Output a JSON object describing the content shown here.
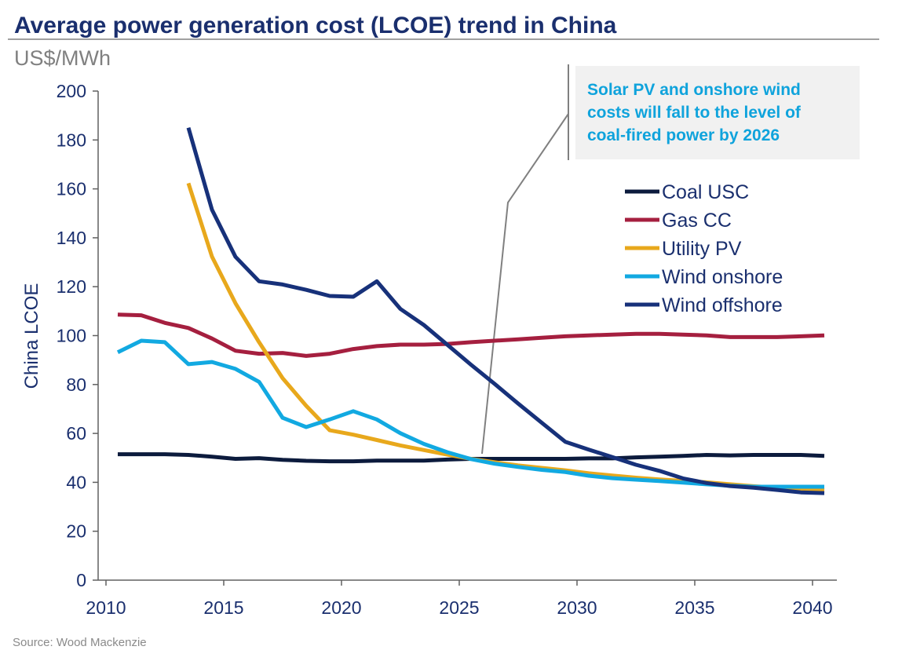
{
  "chart_data": {
    "type": "line",
    "title": "Average power generation cost (LCOE) trend in China",
    "subtitle": "US$/MWh",
    "ylabel": "China LCOE",
    "xlabel": "",
    "xlim": [
      2010,
      2041
    ],
    "ylim": [
      0,
      200
    ],
    "x_ticks": [
      2010,
      2015,
      2020,
      2025,
      2030,
      2035,
      2040
    ],
    "y_ticks": [
      0,
      20,
      40,
      60,
      80,
      100,
      120,
      140,
      160,
      180,
      200
    ],
    "grid": false,
    "legend_position": "right",
    "series": [
      {
        "name": "Coal USC",
        "color": "#0c1b3d",
        "x": [
          2010.5,
          2011.5,
          2012.5,
          2013.5,
          2014.5,
          2015.5,
          2016.5,
          2017.5,
          2018.5,
          2019.5,
          2020.5,
          2021.5,
          2022.5,
          2023.5,
          2024.5,
          2025.5,
          2026.5,
          2027.5,
          2028.5,
          2029.5,
          2030.5,
          2031.5,
          2032.5,
          2033.5,
          2034.5,
          2035.5,
          2036.5,
          2037.5,
          2038.5,
          2039.5,
          2040.5
        ],
        "y": [
          51.5,
          51.5,
          51.5,
          51.2,
          50.5,
          49.6,
          49.9,
          49.2,
          48.8,
          48.6,
          48.6,
          48.9,
          48.9,
          48.9,
          49.3,
          49.6,
          49.6,
          49.6,
          49.6,
          49.6,
          49.8,
          49.8,
          50.2,
          50.5,
          50.8,
          51.2,
          51.0,
          51.2,
          51.2,
          51.2,
          50.8
        ]
      },
      {
        "name": "Gas CC",
        "color": "#a51f3f",
        "x": [
          2010.5,
          2011.5,
          2012.5,
          2013.5,
          2014.5,
          2015.5,
          2016.5,
          2017.5,
          2018.5,
          2019.5,
          2020.5,
          2021.5,
          2022.5,
          2023.5,
          2024.5,
          2025.5,
          2026.5,
          2027.5,
          2028.5,
          2029.5,
          2030.5,
          2031.5,
          2032.5,
          2033.5,
          2034.5,
          2035.5,
          2036.5,
          2037.5,
          2038.5,
          2039.5,
          2040.5
        ],
        "y": [
          108.6,
          108.3,
          105.2,
          103.1,
          98.8,
          93.8,
          92.6,
          92.9,
          91.7,
          92.6,
          94.5,
          95.7,
          96.3,
          96.3,
          96.6,
          97.3,
          97.9,
          98.5,
          99.1,
          99.7,
          100.1,
          100.4,
          100.7,
          100.7,
          100.4,
          100.1,
          99.4,
          99.4,
          99.4,
          99.7,
          100.1
        ]
      },
      {
        "name": "Utility PV",
        "color": "#e8a81c",
        "x": [
          2013.5,
          2014.5,
          2015.5,
          2016.5,
          2017.5,
          2018.5,
          2019.5,
          2020.5,
          2021.5,
          2022.5,
          2023.5,
          2024.5,
          2025.5,
          2026.5,
          2027.5,
          2028.5,
          2029.5,
          2030.5,
          2031.5,
          2032.5,
          2033.5,
          2034.5,
          2035.5,
          2036.5,
          2037.5,
          2038.5,
          2039.5,
          2040.5
        ],
        "y": [
          162.3,
          132.3,
          113.2,
          97.3,
          82.6,
          71.3,
          61.3,
          59.5,
          57.3,
          55.1,
          53.2,
          51.3,
          49.6,
          48.2,
          46.9,
          45.9,
          44.9,
          43.7,
          42.8,
          41.9,
          41.2,
          40.6,
          40.0,
          39.2,
          38.4,
          37.8,
          37.3,
          36.8
        ]
      },
      {
        "name": "Wind onshore",
        "color": "#12a9e1",
        "x": [
          2010.5,
          2011.5,
          2012.5,
          2013.5,
          2014.5,
          2015.5,
          2016.5,
          2017.5,
          2018.5,
          2019.5,
          2020.5,
          2021.5,
          2022.5,
          2023.5,
          2024.5,
          2025.5,
          2026.5,
          2027.5,
          2028.5,
          2029.5,
          2030.5,
          2031.5,
          2032.5,
          2033.5,
          2034.5,
          2035.5,
          2036.5,
          2037.5,
          2038.5,
          2039.5,
          2040.5
        ],
        "y": [
          93.2,
          97.9,
          97.3,
          88.3,
          89.2,
          86.4,
          81.1,
          66.4,
          62.6,
          65.7,
          69.1,
          65.7,
          60.1,
          55.7,
          52.3,
          49.5,
          47.6,
          46.3,
          45.1,
          44.2,
          42.7,
          41.7,
          41.1,
          40.5,
          39.9,
          39.2,
          38.6,
          38.2,
          38.2,
          38.2,
          38.2
        ]
      },
      {
        "name": "Wind offshore",
        "color": "#17317a",
        "x": [
          2013.5,
          2014.5,
          2015.5,
          2016.5,
          2017.5,
          2018.5,
          2019.5,
          2020.5,
          2021.5,
          2022.5,
          2023.5,
          2024.5,
          2025.5,
          2026.5,
          2027.5,
          2028.5,
          2029.5,
          2030.5,
          2031.5,
          2032.5,
          2033.5,
          2034.5,
          2035.5,
          2036.5,
          2037.5,
          2038.5,
          2039.5,
          2040.5
        ],
        "y": [
          185.0,
          151.5,
          132.2,
          122.2,
          120.9,
          118.7,
          116.2,
          115.9,
          122.2,
          110.9,
          104.3,
          96.2,
          88.1,
          80.3,
          72.2,
          64.4,
          56.6,
          53.4,
          50.3,
          47.2,
          44.7,
          41.6,
          39.7,
          38.5,
          37.8,
          36.9,
          35.9,
          35.6
        ]
      }
    ],
    "annotation": {
      "lines": [
        "Solar PV and onshore wind",
        "costs will fall to the level of",
        "coal-fired power by 2026"
      ],
      "box_color": "#f1f1f1",
      "connector_color": "#808080"
    },
    "source": "Source: Wood Mackenzie"
  }
}
